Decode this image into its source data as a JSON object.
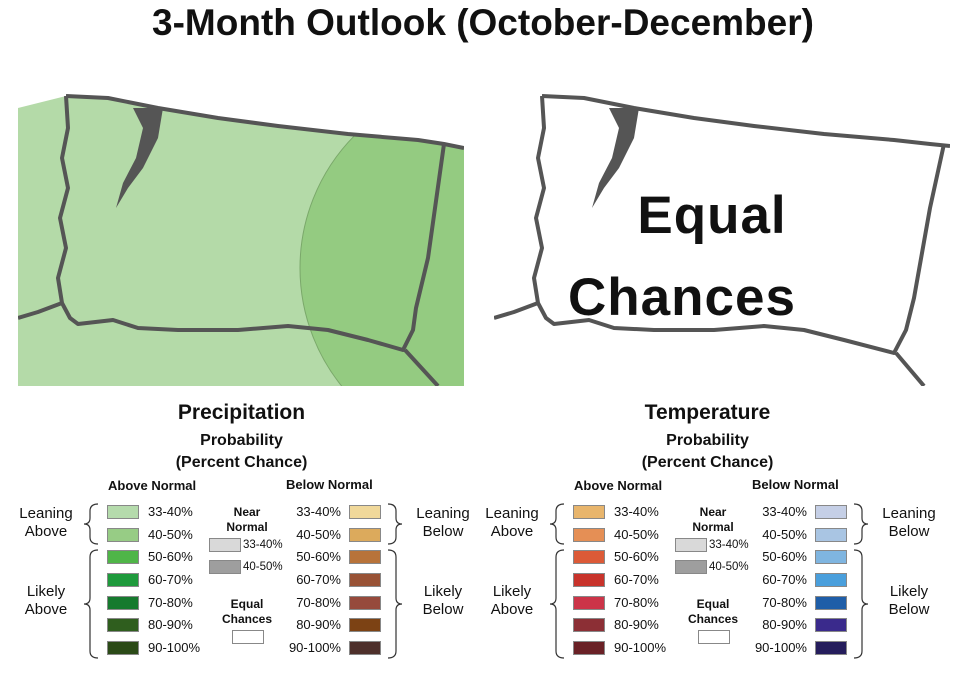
{
  "title": "3-Month Outlook (October-December)",
  "maps": {
    "precipitation": {
      "colors": {
        "leaning_33_40": "#b4daa8",
        "leaning_40_50": "#94cb81",
        "border": "#555555"
      }
    },
    "temperature": {
      "label_line1": "Equal",
      "label_line2": "Chances"
    }
  },
  "legends": [
    {
      "title": "Precipitation",
      "subtitle1": "Probability",
      "subtitle2": "(Percent Chance)",
      "above_header": "Above Normal",
      "below_header": "Below Normal",
      "leaning_above": [
        "Leaning",
        "Above"
      ],
      "likely_above": [
        "Likely",
        "Above"
      ],
      "leaning_below": [
        "Leaning",
        "Below"
      ],
      "likely_below": [
        "Likely",
        "Below"
      ],
      "ranges": [
        "33-40%",
        "40-50%",
        "50-60%",
        "60-70%",
        "70-80%",
        "80-90%",
        "90-100%"
      ],
      "above_colors": [
        "#b5dbac",
        "#97cc85",
        "#4fb548",
        "#1f9a3c",
        "#167a2e",
        "#2f5e1e",
        "#2b4a17"
      ],
      "below_colors": [
        "#f0d89a",
        "#dcaa5c",
        "#b8733a",
        "#985235",
        "#964a3c",
        "#7c4214",
        "#4e302b"
      ],
      "near_normal": [
        "Near",
        "Normal"
      ],
      "near_ranges": [
        "33-40%",
        "40-50%"
      ],
      "near_colors": [
        "#d9d9d9",
        "#9e9e9e"
      ],
      "equal_chances": [
        "Equal",
        "Chances"
      ]
    },
    {
      "title": "Temperature",
      "subtitle1": "Probability",
      "subtitle2": "(Percent Chance)",
      "above_header": "Above Normal",
      "below_header": "Below Normal",
      "leaning_above": [
        "Leaning",
        "Above"
      ],
      "likely_above": [
        "Likely",
        "Above"
      ],
      "leaning_below": [
        "Leaning",
        "Below"
      ],
      "likely_below": [
        "Likely",
        "Below"
      ],
      "ranges": [
        "33-40%",
        "40-50%",
        "50-60%",
        "60-70%",
        "70-80%",
        "80-90%",
        "90-100%"
      ],
      "above_colors": [
        "#e8b56c",
        "#e58f55",
        "#dc5a37",
        "#c8332b",
        "#cc3448",
        "#8c2f35",
        "#6a2126"
      ],
      "below_colors": [
        "#c5cfe6",
        "#a9c5e3",
        "#7fb5e0",
        "#4a9fdc",
        "#1f5ea8",
        "#3a2a8c",
        "#251d5c"
      ],
      "near_normal": [
        "Near",
        "Normal"
      ],
      "near_ranges": [
        "33-40%",
        "40-50%"
      ],
      "near_colors": [
        "#d9d9d9",
        "#9e9e9e"
      ],
      "equal_chances": [
        "Equal",
        "Chances"
      ]
    }
  ]
}
